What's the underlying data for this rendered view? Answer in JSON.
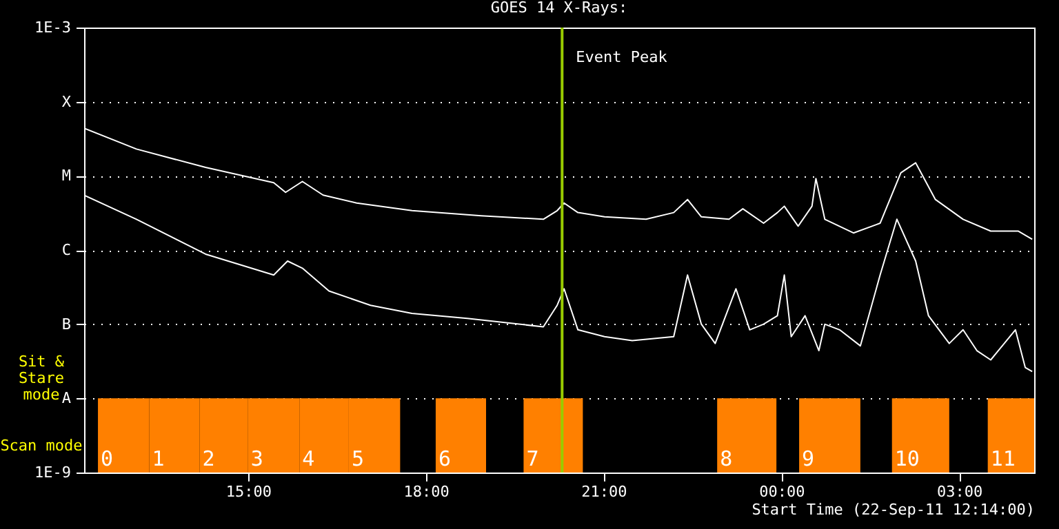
{
  "chart_data": {
    "type": "line",
    "title": "GOES 14 X-Rays:",
    "xlabel": "Start Time (22-Sep-11 12:14:00)",
    "annotations": [
      "Sit & Stare mode",
      "Scan mode"
    ],
    "log": "y",
    "grid": "y",
    "xlim": [
      "--09-22T12:14",
      "--09-23T04:16"
    ],
    "xticks": [
      {
        "value": "--09-22T15:00",
        "label": "15:00"
      },
      {
        "value": "--09-22T18:00",
        "label": "18:00"
      },
      {
        "value": "--09-22T21:00",
        "label": "21:00"
      },
      {
        "value": "--09-23T00:00",
        "label": "00:00"
      },
      {
        "value": "--09-23T03:00",
        "label": "03:00"
      }
    ],
    "ylim": [
      1e-09,
      0.001
    ],
    "yticks": [
      {
        "value": 1e-09,
        "label": "1E-9"
      },
      {
        "value": 1e-08,
        "label": "A"
      },
      {
        "value": 1e-07,
        "label": "B"
      },
      {
        "value": 1e-06,
        "label": "C"
      },
      {
        "value": 1e-05,
        "label": "M"
      },
      {
        "value": 0.0001,
        "label": "X"
      },
      {
        "value": 0.001,
        "label": "1E-3"
      }
    ],
    "series": [
      {
        "color": "#ffffff",
        "x": [
          "--09-22T12:14",
          "--09-22T13:07",
          "--09-22T14:17",
          "--09-22T15:26",
          "--09-22T15:38",
          "--09-22T15:55",
          "--09-22T16:16",
          "--09-22T16:50",
          "--09-22T17:46",
          "--09-22T18:56",
          "--09-22T19:59",
          "--09-22T20:13",
          "--09-22T20:20",
          "--09-22T20:34",
          "--09-22T21:01",
          "--09-22T21:43",
          "--09-22T22:11",
          "--09-22T22:25",
          "--09-22T22:39",
          "--09-22T23:07",
          "--09-22T23:21",
          "--09-22T23:42",
          "--09-22T23:56",
          "--09-23T00:03",
          "--09-23T00:17",
          "--09-23T00:31",
          "--09-23T00:35",
          "--09-23T00:44",
          "--09-23T01:13",
          "--09-23T01:40",
          "--09-23T02:01",
          "--09-23T02:16",
          "--09-23T02:36",
          "--09-23T03:04",
          "--09-23T03:32",
          "--09-23T04:00",
          "--09-23T04:14"
        ],
        "values": [
          4.4e-05,
          2.3e-05,
          1.3e-05,
          8.1e-06,
          6e-06,
          8.4e-06,
          5.5e-06,
          4.3e-06,
          3.4e-06,
          2.9e-06,
          2.6e-06,
          3.4e-06,
          4.3e-06,
          3.2e-06,
          2.8e-06,
          2.6e-06,
          3.2e-06,
          4.8e-06,
          2.8e-06,
          2.6e-06,
          3.6e-06,
          2.3e-06,
          3.2e-06,
          3.9e-06,
          2.1e-06,
          3.9e-06,
          9.2e-06,
          2.6e-06,
          1.7e-06,
          2.3e-06,
          1.1e-05,
          1.5e-05,
          4.8e-06,
          2.6e-06,
          1.8e-06,
          1.8e-06,
          1.4e-06
        ]
      },
      {
        "color": "#ffffff",
        "x": [
          "--09-22T12:14",
          "--09-22T13:07",
          "--09-22T14:17",
          "--09-22T15:26",
          "--09-22T15:40",
          "--09-22T15:55",
          "--09-22T16:22",
          "--09-22T17:04",
          "--09-22T17:46",
          "--09-22T18:42",
          "--09-22T19:59",
          "--09-22T20:13",
          "--09-22T20:20",
          "--09-22T20:34",
          "--09-22T21:01",
          "--09-22T21:29",
          "--09-22T22:11",
          "--09-22T22:25",
          "--09-22T22:39",
          "--09-22T22:53",
          "--09-22T23:14",
          "--09-22T23:28",
          "--09-22T23:42",
          "--09-22T23:56",
          "--09-23T00:03",
          "--09-23T00:10",
          "--09-23T00:24",
          "--09-23T00:38",
          "--09-23T00:44",
          "--09-23T00:59",
          "--09-23T01:20",
          "--09-23T01:40",
          "--09-23T01:57",
          "--09-23T02:16",
          "--09-23T02:29",
          "--09-23T02:50",
          "--09-23T03:04",
          "--09-23T03:18",
          "--09-23T03:32",
          "--09-23T03:57",
          "--09-23T04:07",
          "--09-23T04:14"
        ],
        "values": [
          5.5e-06,
          2.6e-06,
          8.8e-07,
          4.6e-07,
          7.1e-07,
          5.7e-07,
          2.8e-07,
          1.8e-07,
          1.4e-07,
          1.2e-07,
          9.2e-08,
          1.8e-07,
          3e-07,
          8.4e-08,
          6.8e-08,
          6e-08,
          6.8e-08,
          4.6e-07,
          1e-07,
          5.5e-08,
          3e-07,
          8.4e-08,
          1e-07,
          1.3e-07,
          4.6e-07,
          6.8e-08,
          1.3e-07,
          4.4e-08,
          1e-07,
          8.4e-08,
          5.1e-08,
          4.6e-07,
          2.6e-06,
          7.1e-07,
          1.3e-07,
          5.5e-08,
          8.4e-08,
          4.4e-08,
          3.3e-08,
          8.4e-08,
          2.6e-08,
          2.3e-08
        ]
      }
    ],
    "ref_lines": [
      {
        "axis": "x",
        "value": "--09-22T20:18",
        "label": "Event Peak",
        "color": "#99cc00"
      }
    ],
    "bands": [
      {
        "axis": "x",
        "from": "--09-22T12:28",
        "to": "--09-22T13:20",
        "label": "0",
        "color": "#ff8000"
      },
      {
        "axis": "x",
        "from": "--09-22T13:20",
        "to": "--09-22T14:11",
        "label": "1",
        "color": "#ff8000"
      },
      {
        "axis": "x",
        "from": "--09-22T14:11",
        "to": "--09-22T15:00",
        "label": "2",
        "color": "#ff8000"
      },
      {
        "axis": "x",
        "from": "--09-22T15:00",
        "to": "--09-22T15:52",
        "label": "3",
        "color": "#ff8000"
      },
      {
        "axis": "x",
        "from": "--09-22T15:52",
        "to": "--09-22T16:42",
        "label": "4",
        "color": "#ff8000"
      },
      {
        "axis": "x",
        "from": "--09-22T16:42",
        "to": "--09-22T17:34",
        "label": "5",
        "color": "#ff8000"
      },
      {
        "axis": "x",
        "from": "--09-22T18:10",
        "to": "--09-22T19:01",
        "label": "6",
        "color": "#ff8000"
      },
      {
        "axis": "x",
        "from": "--09-22T19:39",
        "to": "--09-22T20:39",
        "label": "7",
        "color": "#ff8000"
      },
      {
        "axis": "x",
        "from": "--09-22T22:55",
        "to": "--09-22T23:55",
        "label": "8",
        "color": "#ff8000"
      },
      {
        "axis": "x",
        "from": "--09-23T00:18",
        "to": "--09-23T01:20",
        "label": "9",
        "color": "#ff8000"
      },
      {
        "axis": "x",
        "from": "--09-23T01:52",
        "to": "--09-23T02:50",
        "label": "10",
        "color": "#ff8000"
      },
      {
        "axis": "x",
        "from": "--09-23T03:29",
        "to": "--09-23T04:16",
        "label": "11",
        "color": "#ff8000"
      }
    ]
  }
}
